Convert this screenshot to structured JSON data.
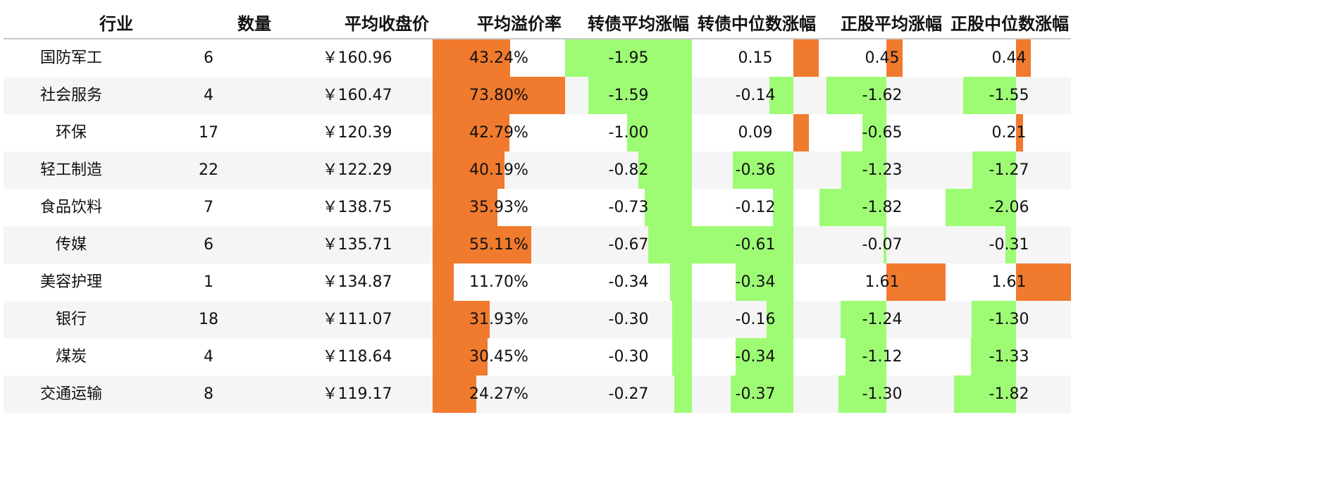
{
  "colors": {
    "positive": "#f07a2e",
    "negative": "#9dfc74",
    "alt_row": "#f5f5f5"
  },
  "headers": [
    "行业",
    "数量",
    "平均收盘价",
    "平均溢价率",
    "转债平均涨幅",
    "转债中位数涨幅",
    "正股平均涨幅",
    "正股中位数涨幅"
  ],
  "chart_data": {
    "type": "table",
    "columns": [
      "行业",
      "数量",
      "平均收盘价",
      "平均溢价率",
      "转债平均涨幅",
      "转债中位数涨幅",
      "正股平均涨幅",
      "正股中位数涨幅"
    ],
    "rows": [
      {
        "industry": "国防军工",
        "count": "6",
        "price": "￥160.96",
        "premium": "43.24%",
        "cb_mean": "-1.95",
        "cb_median": "0.15",
        "stk_mean": "0.45",
        "stk_median": "0.44"
      },
      {
        "industry": "社会服务",
        "count": "4",
        "price": "￥160.47",
        "premium": "73.80%",
        "cb_mean": "-1.59",
        "cb_median": "-0.14",
        "stk_mean": "-1.62",
        "stk_median": "-1.55"
      },
      {
        "industry": "环保",
        "count": "17",
        "price": "￥120.39",
        "premium": "42.79%",
        "cb_mean": "-1.00",
        "cb_median": "0.09",
        "stk_mean": "-0.65",
        "stk_median": "0.21"
      },
      {
        "industry": "轻工制造",
        "count": "22",
        "price": "￥122.29",
        "premium": "40.19%",
        "cb_mean": "-0.82",
        "cb_median": "-0.36",
        "stk_mean": "-1.23",
        "stk_median": "-1.27"
      },
      {
        "industry": "食品饮料",
        "count": "7",
        "price": "￥138.75",
        "premium": "35.93%",
        "cb_mean": "-0.73",
        "cb_median": "-0.12",
        "stk_mean": "-1.82",
        "stk_median": "-2.06"
      },
      {
        "industry": "传媒",
        "count": "6",
        "price": "￥135.71",
        "premium": "55.11%",
        "cb_mean": "-0.67",
        "cb_median": "-0.61",
        "stk_mean": "-0.07",
        "stk_median": "-0.31"
      },
      {
        "industry": "美容护理",
        "count": "1",
        "price": "￥134.87",
        "premium": "11.70%",
        "cb_mean": "-0.34",
        "cb_median": "-0.34",
        "stk_mean": "1.61",
        "stk_median": "1.61"
      },
      {
        "industry": "银行",
        "count": "18",
        "price": "￥111.07",
        "premium": "31.93%",
        "cb_mean": "-0.30",
        "cb_median": "-0.16",
        "stk_mean": "-1.24",
        "stk_median": "-1.30"
      },
      {
        "industry": "煤炭",
        "count": "4",
        "price": "￥118.64",
        "premium": "30.45%",
        "cb_mean": "-0.30",
        "cb_median": "-0.34",
        "stk_mean": "-1.12",
        "stk_median": "-1.33"
      },
      {
        "industry": "交通运输",
        "count": "8",
        "price": "￥119.17",
        "premium": "24.27%",
        "cb_mean": "-0.27",
        "cb_median": "-0.37",
        "stk_mean": "-1.30",
        "stk_median": "-1.82"
      }
    ]
  }
}
